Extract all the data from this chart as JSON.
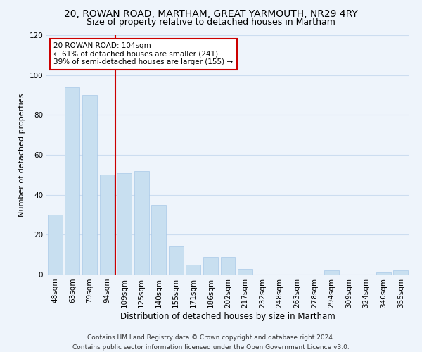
{
  "title": "20, ROWAN ROAD, MARTHAM, GREAT YARMOUTH, NR29 4RY",
  "subtitle": "Size of property relative to detached houses in Martham",
  "xlabel": "Distribution of detached houses by size in Martham",
  "ylabel": "Number of detached properties",
  "categories": [
    "48sqm",
    "63sqm",
    "79sqm",
    "94sqm",
    "109sqm",
    "125sqm",
    "140sqm",
    "155sqm",
    "171sqm",
    "186sqm",
    "202sqm",
    "217sqm",
    "232sqm",
    "248sqm",
    "263sqm",
    "278sqm",
    "294sqm",
    "309sqm",
    "324sqm",
    "340sqm",
    "355sqm"
  ],
  "values": [
    30,
    94,
    90,
    50,
    51,
    52,
    35,
    14,
    5,
    9,
    9,
    3,
    0,
    0,
    0,
    0,
    2,
    0,
    0,
    1,
    2
  ],
  "bar_color": "#c8dff0",
  "bar_edge_color": "#a8c8e8",
  "marker_line_label": "20 ROWAN ROAD: 104sqm",
  "annotation_line1": "← 61% of detached houses are smaller (241)",
  "annotation_line2": "39% of semi-detached houses are larger (155) →",
  "annotation_box_color": "#ffffff",
  "annotation_box_edge_color": "#cc0000",
  "marker_line_color": "#cc0000",
  "ylim": [
    0,
    120
  ],
  "yticks": [
    0,
    20,
    40,
    60,
    80,
    100,
    120
  ],
  "footnote1": "Contains HM Land Registry data © Crown copyright and database right 2024.",
  "footnote2": "Contains public sector information licensed under the Open Government Licence v3.0.",
  "title_fontsize": 10,
  "subtitle_fontsize": 9,
  "xlabel_fontsize": 8.5,
  "ylabel_fontsize": 8,
  "tick_fontsize": 7.5,
  "annotation_fontsize": 7.5,
  "footnote_fontsize": 6.5,
  "grid_color": "#ccddf0",
  "bg_color": "#eef4fb"
}
